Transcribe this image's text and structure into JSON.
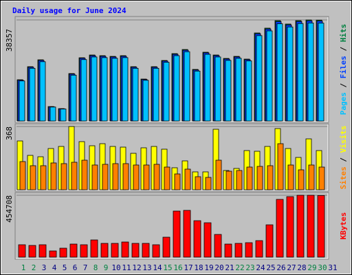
{
  "chart_data": [
    {
      "type": "bar",
      "title": "Daily usage for June 2024",
      "ylim": [
        0,
        38357
      ],
      "yticks": [
        38357
      ],
      "legend_separator": " / ",
      "series": [
        {
          "name": "Hits",
          "color": "#008040",
          "values": [
            15660,
            20620,
            23230,
            5480,
            4700,
            18010,
            24010,
            25050,
            24800,
            24530,
            24800,
            20620,
            15920,
            20620,
            22970,
            25580,
            27140,
            19580,
            26100,
            25050,
            23750,
            24530,
            23490,
            33410,
            35240,
            38100,
            36800,
            38100,
            38357,
            38300,
            null
          ]
        },
        {
          "name": "Files",
          "color": "#0040ff",
          "values": [
            15500,
            20400,
            23000,
            5400,
            4650,
            17800,
            23800,
            24800,
            24550,
            24300,
            24550,
            20400,
            15750,
            20400,
            22750,
            25300,
            26850,
            19350,
            25850,
            24800,
            23500,
            24300,
            23250,
            33100,
            34900,
            37700,
            36450,
            37750,
            38000,
            37950,
            null
          ]
        },
        {
          "name": "Pages",
          "color": "#00c0ff",
          "values": [
            15200,
            20000,
            22500,
            5300,
            4550,
            17400,
            23300,
            24300,
            24050,
            23800,
            24050,
            20000,
            15450,
            20000,
            22300,
            24800,
            26300,
            18950,
            25300,
            24300,
            23000,
            23800,
            22800,
            32400,
            34200,
            36900,
            35700,
            37000,
            37200,
            37150,
            null
          ]
        }
      ]
    },
    {
      "type": "bar",
      "ylim": [
        0,
        368
      ],
      "yticks": [
        368
      ],
      "legend_separator": " / ",
      "series": [
        {
          "name": "Visits",
          "color": "#ffff00",
          "values": [
            284,
            200,
            192,
            240,
            252,
            368,
            280,
            256,
            268,
            252,
            248,
            212,
            244,
            252,
            236,
            128,
            168,
            104,
            104,
            352,
            112,
            124,
            228,
            224,
            252,
            356,
            240,
            188,
            296,
            228,
            null
          ]
        },
        {
          "name": "Sites",
          "color": "#ff8000",
          "values": [
            164,
            140,
            140,
            156,
            152,
            160,
            172,
            144,
            148,
            152,
            152,
            144,
            144,
            148,
            132,
            92,
            120,
            76,
            72,
            172,
            108,
            112,
            132,
            136,
            140,
            268,
            144,
            116,
            144,
            132,
            null
          ]
        }
      ]
    },
    {
      "type": "bar",
      "ylim": [
        0,
        454708
      ],
      "yticks": [
        454708
      ],
      "legend_separator": " / ",
      "categories": [
        "1",
        "2",
        "3",
        "4",
        "5",
        "6",
        "7",
        "8",
        "9",
        "10",
        "11",
        "12",
        "13",
        "14",
        "15",
        "16",
        "17",
        "18",
        "19",
        "20",
        "21",
        "22",
        "23",
        "24",
        "25",
        "26",
        "27",
        "28",
        "29",
        "30",
        "31"
      ],
      "category_colors": [
        "#008040",
        "#008040",
        "#000080",
        "#000080",
        "#000080",
        "#000080",
        "#000080",
        "#008040",
        "#008040",
        "#000080",
        "#000080",
        "#000080",
        "#000080",
        "#000080",
        "#008040",
        "#008040",
        "#000080",
        "#000080",
        "#000080",
        "#000080",
        "#000080",
        "#008040",
        "#008040",
        "#000080",
        "#000080",
        "#000080",
        "#000080",
        "#000080",
        "#008040",
        "#008040",
        "#000080"
      ],
      "series": [
        {
          "name": "KBytes",
          "color": "#ff0000",
          "values": [
            90940,
            85880,
            90940,
            45470,
            65680,
            95990,
            90940,
            126300,
            101040,
            101040,
            111140,
            101040,
            101040,
            90940,
            146510,
            338480,
            343540,
            267760,
            252600,
            166720,
            95990,
            101040,
            106090,
            121250,
            237440,
            424370,
            444580,
            454708,
            454700,
            453000,
            null
          ]
        }
      ]
    }
  ]
}
